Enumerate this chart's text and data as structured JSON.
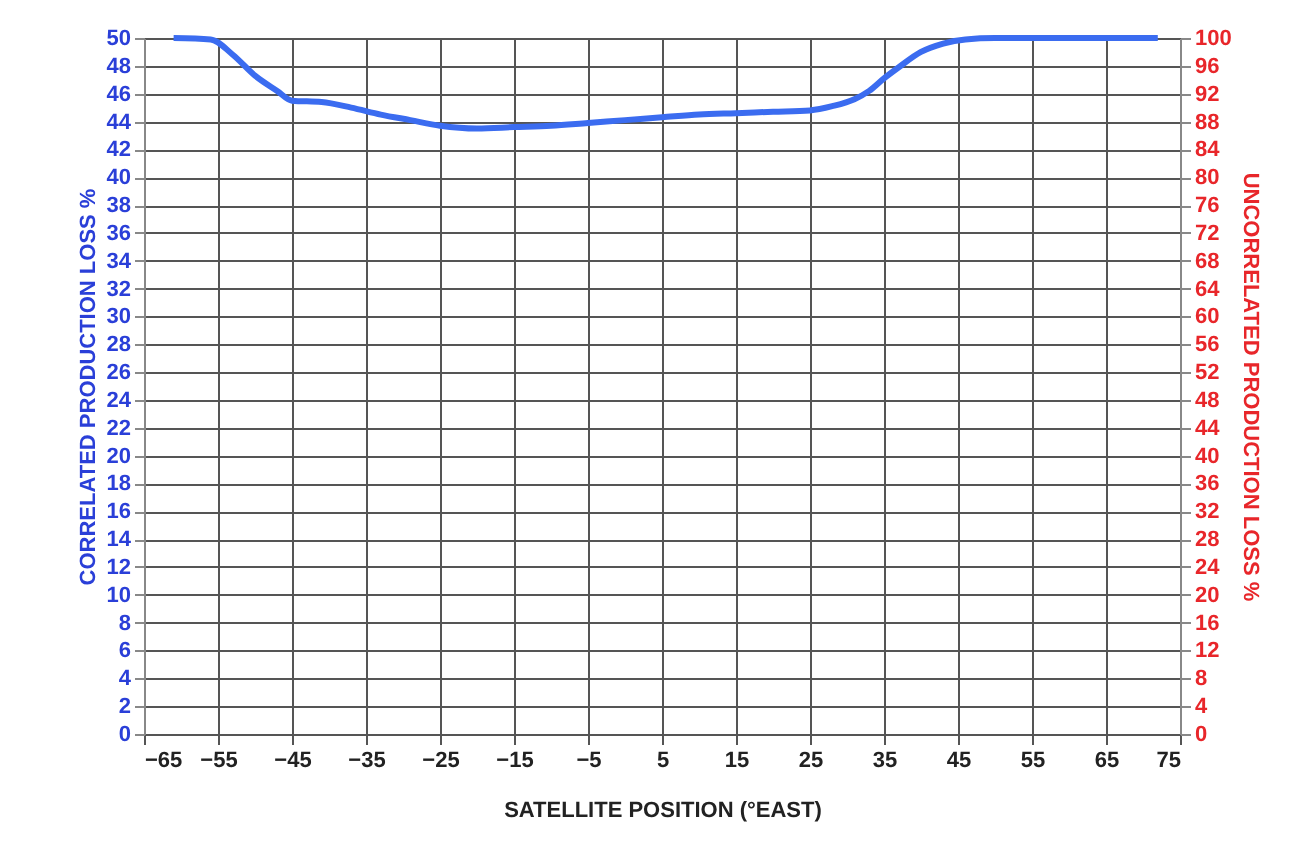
{
  "chart_data": {
    "type": "line",
    "xlabel": "SATELLITE POSITION (°EAST)",
    "ylabel": "CORRELATED PRODUCTION LOSS %",
    "y2label": "UNCORRELATED PRODUCTION LOSS %",
    "series": [
      {
        "color": "#3b6cf0",
        "x": [
          -61,
          -56,
          -53,
          -50,
          -47,
          -45,
          -41,
          -37,
          -33,
          -29,
          -25,
          -20,
          -15,
          -10,
          -5,
          0,
          5,
          10,
          15,
          20,
          25,
          28,
          31,
          33,
          35,
          37,
          40,
          43,
          46,
          50,
          60,
          72
        ],
        "values": [
          50,
          49.9,
          48.8,
          47.3,
          46.2,
          45.5,
          45.4,
          45.0,
          44.5,
          44.1,
          43.7,
          43.5,
          43.6,
          43.7,
          43.9,
          44.1,
          44.3,
          44.5,
          44.6,
          44.7,
          44.8,
          45.1,
          45.6,
          46.2,
          47.1,
          47.9,
          49.0,
          49.6,
          49.9,
          50,
          50,
          50
        ]
      }
    ],
    "xlim": [
      -65,
      75
    ],
    "xticks": [
      -65,
      -55,
      -45,
      -35,
      -25,
      -15,
      -5,
      5,
      15,
      25,
      35,
      45,
      55,
      65,
      75
    ],
    "ylim": [
      0,
      50
    ],
    "yticks": [
      0,
      2,
      4,
      6,
      8,
      10,
      12,
      14,
      16,
      18,
      20,
      22,
      24,
      26,
      28,
      30,
      32,
      34,
      36,
      38,
      40,
      42,
      44,
      46,
      48,
      50
    ],
    "y2lim": [
      0,
      100
    ],
    "y2ticks": [
      0,
      4,
      8,
      12,
      16,
      20,
      24,
      28,
      32,
      36,
      40,
      44,
      48,
      52,
      56,
      60,
      64,
      68,
      72,
      76,
      80,
      84,
      88,
      92,
      96,
      100
    ],
    "grid": true,
    "marker": "none",
    "line_style": "solid"
  }
}
